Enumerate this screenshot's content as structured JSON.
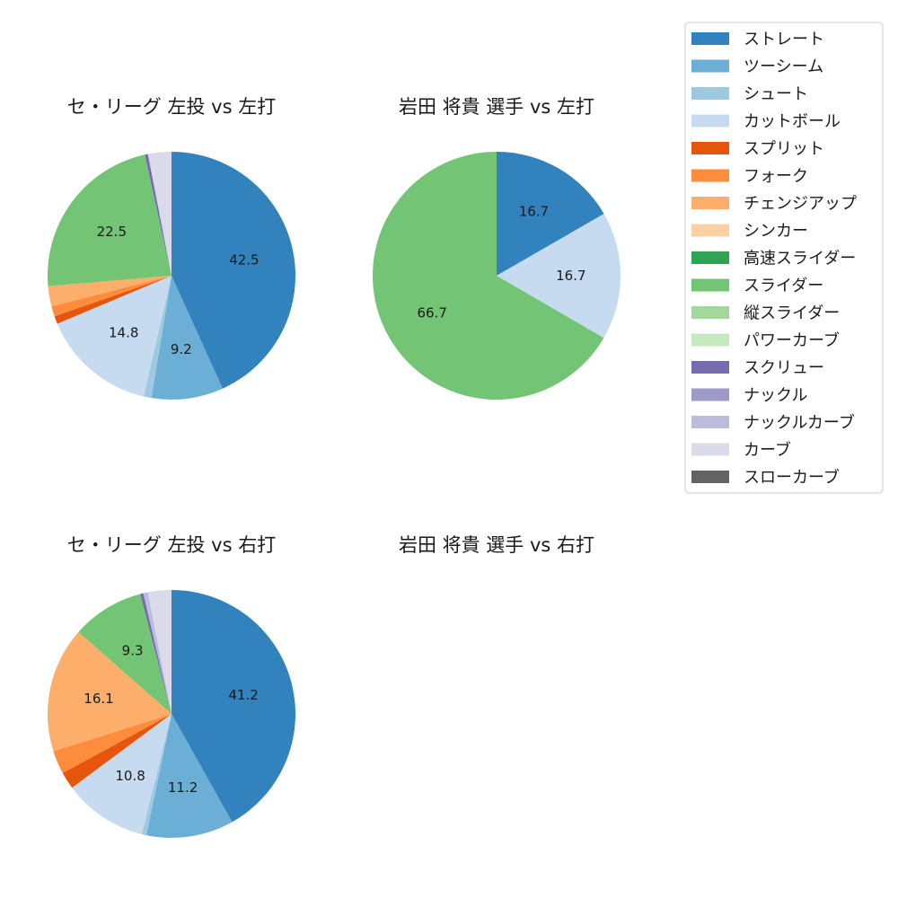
{
  "legend": {
    "entries": [
      {
        "name": "ストレート",
        "color": "#3182bd"
      },
      {
        "name": "ツーシーム",
        "color": "#6baed6"
      },
      {
        "name": "シュート",
        "color": "#9ecae1"
      },
      {
        "name": "カットボール",
        "color": "#c6dbef"
      },
      {
        "name": "スプリット",
        "color": "#e6550d"
      },
      {
        "name": "フォーク",
        "color": "#fd8d3c"
      },
      {
        "name": "チェンジアップ",
        "color": "#fdae6b"
      },
      {
        "name": "シンカー",
        "color": "#fdd0a2"
      },
      {
        "name": "高速スライダー",
        "color": "#31a354"
      },
      {
        "name": "スライダー",
        "color": "#74c476"
      },
      {
        "name": "縦スライダー",
        "color": "#a1d99b"
      },
      {
        "name": "パワーカーブ",
        "color": "#c7e9c0"
      },
      {
        "name": "スクリュー",
        "color": "#756bb1"
      },
      {
        "name": "ナックル",
        "color": "#9e9ac8"
      },
      {
        "name": "ナックルカーブ",
        "color": "#bcbddc"
      },
      {
        "name": "カーブ",
        "color": "#dadaeb"
      },
      {
        "name": "スローカーブ",
        "color": "#636363"
      }
    ]
  },
  "chart_data": [
    {
      "type": "pie",
      "title": "セ・リーグ 左投 vs 左打",
      "categories": [
        "ストレート",
        "ツーシーム",
        "シュート",
        "カットボール",
        "スプリット",
        "フォーク",
        "チェンジアップ",
        "スライダー",
        "スクリュー",
        "カーブ"
      ],
      "values": [
        42.5,
        9.2,
        1.0,
        14.8,
        1.0,
        1.3,
        2.6,
        22.5,
        0.4,
        3.0
      ],
      "labels": [
        "42.5",
        "9.2",
        "",
        "14.8",
        "",
        "",
        "",
        "22.5",
        "",
        ""
      ]
    },
    {
      "type": "pie",
      "title": "岩田 将貴 選手 vs 左打",
      "categories": [
        "ストレート",
        "カットボール",
        "スライダー"
      ],
      "values": [
        16.7,
        16.7,
        66.7
      ],
      "labels": [
        "16.7",
        "16.7",
        "66.7"
      ]
    },
    {
      "type": "pie",
      "title": "セ・リーグ 左投 vs 右打",
      "categories": [
        "ストレート",
        "ツーシーム",
        "シュート",
        "カットボール",
        "スプリット",
        "フォーク",
        "チェンジアップ",
        "スライダー",
        "スクリュー",
        "ナックルカーブ",
        "カーブ"
      ],
      "values": [
        41.2,
        11.2,
        0.6,
        10.8,
        2.2,
        3.0,
        16.1,
        9.3,
        0.4,
        0.6,
        3.0
      ],
      "labels": [
        "41.2",
        "11.2",
        "",
        "10.8",
        "",
        "",
        "16.1",
        "9.3",
        "",
        "",
        ""
      ]
    },
    {
      "type": "pie",
      "title": "岩田 将貴 選手 vs 右打",
      "categories": [],
      "values": [],
      "labels": []
    }
  ]
}
